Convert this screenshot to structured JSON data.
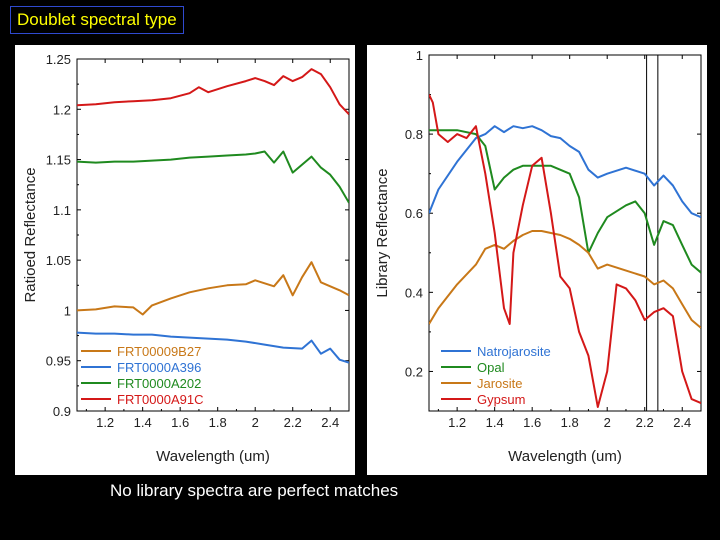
{
  "slide": {
    "title": "Doublet spectral type",
    "caption": "No library spectra are perfect matches"
  },
  "chart_data": [
    {
      "type": "line",
      "xlabel": "Wavelength (um)",
      "ylabel": "Ratioed Reflectance",
      "xlim": [
        1.05,
        2.5
      ],
      "ylim": [
        0.9,
        1.25
      ],
      "xticks": [
        "1.2",
        "1.4",
        "1.6",
        "1.8",
        "2",
        "2.2",
        "2.4"
      ],
      "xtick_values": [
        1.2,
        1.4,
        1.6,
        1.8,
        2.0,
        2.2,
        2.4
      ],
      "yticks": [
        "0.9",
        "0.95",
        "1",
        "1.05",
        "1.1",
        "1.15",
        "1.2",
        "1.25"
      ],
      "ytick_values": [
        0.9,
        0.95,
        1.0,
        1.05,
        1.1,
        1.15,
        1.2,
        1.25
      ],
      "legend_position": "bottom-left",
      "series": [
        {
          "name": "FRT00009B27",
          "color": "#c87818",
          "x": [
            1.05,
            1.15,
            1.25,
            1.35,
            1.4,
            1.45,
            1.55,
            1.65,
            1.75,
            1.85,
            1.95,
            2.0,
            2.05,
            2.1,
            2.15,
            2.2,
            2.25,
            2.3,
            2.35,
            2.4,
            2.45,
            2.5
          ],
          "y": [
            1.0,
            1.001,
            1.004,
            1.003,
            0.996,
            1.005,
            1.012,
            1.018,
            1.022,
            1.025,
            1.026,
            1.03,
            1.027,
            1.024,
            1.035,
            1.015,
            1.033,
            1.048,
            1.028,
            1.024,
            1.02,
            1.015
          ]
        },
        {
          "name": "FRT0000A396",
          "color": "#2f73d4",
          "x": [
            1.05,
            1.15,
            1.25,
            1.35,
            1.45,
            1.55,
            1.65,
            1.75,
            1.85,
            1.95,
            2.05,
            2.15,
            2.25,
            2.3,
            2.35,
            2.4,
            2.45,
            2.5
          ],
          "y": [
            0.978,
            0.977,
            0.977,
            0.976,
            0.976,
            0.974,
            0.973,
            0.972,
            0.971,
            0.969,
            0.966,
            0.963,
            0.962,
            0.97,
            0.957,
            0.962,
            0.951,
            0.948
          ]
        },
        {
          "name": "FRT0000A202",
          "color": "#1f8a1f",
          "x": [
            1.05,
            1.15,
            1.25,
            1.35,
            1.45,
            1.55,
            1.65,
            1.75,
            1.85,
            1.95,
            2.0,
            2.05,
            2.1,
            2.15,
            2.2,
            2.25,
            2.3,
            2.35,
            2.4,
            2.45,
            2.5
          ],
          "y": [
            1.148,
            1.147,
            1.148,
            1.148,
            1.149,
            1.15,
            1.152,
            1.153,
            1.154,
            1.155,
            1.156,
            1.158,
            1.147,
            1.158,
            1.137,
            1.145,
            1.153,
            1.142,
            1.135,
            1.123,
            1.107
          ]
        },
        {
          "name": "FRT0000A91C",
          "color": "#d41818",
          "x": [
            1.05,
            1.15,
            1.25,
            1.35,
            1.45,
            1.55,
            1.65,
            1.7,
            1.75,
            1.85,
            1.95,
            2.0,
            2.05,
            2.1,
            2.15,
            2.2,
            2.25,
            2.3,
            2.35,
            2.4,
            2.45,
            2.5
          ],
          "y": [
            1.204,
            1.205,
            1.207,
            1.208,
            1.209,
            1.211,
            1.216,
            1.222,
            1.217,
            1.223,
            1.228,
            1.231,
            1.228,
            1.224,
            1.233,
            1.228,
            1.232,
            1.24,
            1.235,
            1.222,
            1.205,
            1.195
          ]
        }
      ]
    },
    {
      "type": "line",
      "xlabel": "Wavelength (um)",
      "ylabel": "Library Reflectance",
      "xlim": [
        1.05,
        2.5
      ],
      "ylim": [
        0.1,
        1.0
      ],
      "xticks": [
        "1.2",
        "1.4",
        "1.6",
        "1.8",
        "2",
        "2.2",
        "2.4"
      ],
      "xtick_values": [
        1.2,
        1.4,
        1.6,
        1.8,
        2.0,
        2.2,
        2.4
      ],
      "yticks": [
        "0.2",
        "0.4",
        "0.6",
        "0.8",
        "1"
      ],
      "ytick_values": [
        0.2,
        0.4,
        0.6,
        0.8,
        1.0
      ],
      "vlines": [
        2.21,
        2.27
      ],
      "legend_position": "bottom-left",
      "series": [
        {
          "name": "Natrojarosite",
          "color": "#2f73d4",
          "x": [
            1.05,
            1.1,
            1.2,
            1.3,
            1.35,
            1.4,
            1.45,
            1.5,
            1.55,
            1.6,
            1.65,
            1.7,
            1.75,
            1.8,
            1.85,
            1.9,
            1.95,
            2.0,
            2.1,
            2.2,
            2.25,
            2.3,
            2.35,
            2.4,
            2.45,
            2.5
          ],
          "y": [
            0.6,
            0.66,
            0.73,
            0.79,
            0.8,
            0.82,
            0.805,
            0.82,
            0.815,
            0.82,
            0.81,
            0.795,
            0.79,
            0.77,
            0.755,
            0.71,
            0.69,
            0.7,
            0.715,
            0.7,
            0.67,
            0.695,
            0.67,
            0.63,
            0.6,
            0.59
          ]
        },
        {
          "name": "Opal",
          "color": "#1f8a1f",
          "x": [
            1.05,
            1.1,
            1.2,
            1.3,
            1.35,
            1.4,
            1.45,
            1.5,
            1.55,
            1.6,
            1.7,
            1.8,
            1.85,
            1.9,
            1.95,
            2.0,
            2.1,
            2.15,
            2.2,
            2.25,
            2.3,
            2.35,
            2.4,
            2.45,
            2.5
          ],
          "y": [
            0.81,
            0.81,
            0.81,
            0.8,
            0.77,
            0.66,
            0.69,
            0.71,
            0.72,
            0.72,
            0.72,
            0.7,
            0.64,
            0.5,
            0.55,
            0.59,
            0.62,
            0.63,
            0.6,
            0.52,
            0.58,
            0.57,
            0.52,
            0.47,
            0.45
          ]
        },
        {
          "name": "Jarosite",
          "color": "#c87818",
          "x": [
            1.05,
            1.1,
            1.2,
            1.3,
            1.35,
            1.4,
            1.45,
            1.5,
            1.55,
            1.6,
            1.65,
            1.7,
            1.75,
            1.8,
            1.85,
            1.9,
            1.95,
            2.0,
            2.1,
            2.2,
            2.25,
            2.3,
            2.35,
            2.4,
            2.45,
            2.5
          ],
          "y": [
            0.32,
            0.36,
            0.42,
            0.47,
            0.51,
            0.52,
            0.51,
            0.53,
            0.545,
            0.555,
            0.555,
            0.55,
            0.545,
            0.535,
            0.52,
            0.5,
            0.46,
            0.47,
            0.455,
            0.44,
            0.42,
            0.43,
            0.41,
            0.37,
            0.33,
            0.31
          ]
        },
        {
          "name": "Gypsum",
          "color": "#d41818",
          "x": [
            1.05,
            1.07,
            1.1,
            1.15,
            1.2,
            1.25,
            1.3,
            1.35,
            1.4,
            1.45,
            1.48,
            1.5,
            1.55,
            1.6,
            1.65,
            1.7,
            1.75,
            1.8,
            1.85,
            1.9,
            1.95,
            2.0,
            2.05,
            2.1,
            2.15,
            2.2,
            2.25,
            2.3,
            2.35,
            2.4,
            2.45,
            2.5
          ],
          "y": [
            0.9,
            0.88,
            0.8,
            0.78,
            0.8,
            0.79,
            0.82,
            0.7,
            0.55,
            0.36,
            0.32,
            0.5,
            0.62,
            0.72,
            0.74,
            0.6,
            0.44,
            0.41,
            0.3,
            0.24,
            0.11,
            0.2,
            0.42,
            0.41,
            0.38,
            0.33,
            0.35,
            0.36,
            0.34,
            0.2,
            0.13,
            0.12
          ]
        }
      ]
    }
  ]
}
